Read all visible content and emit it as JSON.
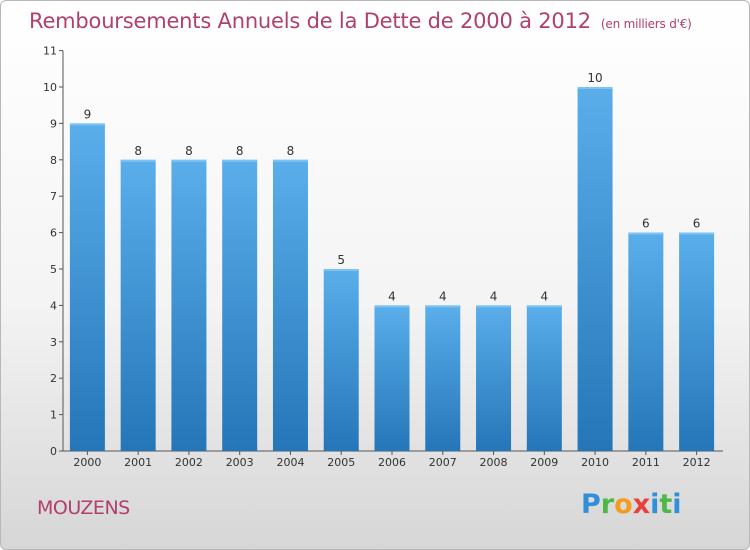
{
  "chart_data": {
    "type": "bar",
    "title": "Remboursements Annuels de la Dette de 2000 à 2012",
    "unit": "(en milliers d'€)",
    "categories": [
      "2000",
      "2001",
      "2002",
      "2003",
      "2004",
      "2005",
      "2006",
      "2007",
      "2008",
      "2009",
      "2010",
      "2011",
      "2012"
    ],
    "values": [
      9,
      8,
      8,
      8,
      8,
      5,
      4,
      4,
      4,
      4,
      10,
      6,
      6
    ],
    "ylim": [
      0,
      11
    ],
    "yticks": [
      0,
      1,
      2,
      3,
      4,
      5,
      6,
      7,
      8,
      9,
      10,
      11
    ],
    "grid": false,
    "bar_color": "#3a95d8"
  },
  "footer": {
    "place": "MOUZENS",
    "logo": "Proxiti"
  }
}
